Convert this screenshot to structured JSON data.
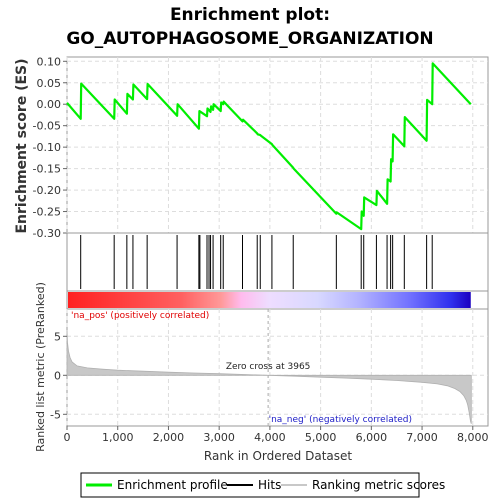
{
  "title_line1": "Enrichment plot:",
  "title_line2": "GO_AUTOPHAGOSOME_ORGANIZATION",
  "chart_data": {
    "type": "line",
    "es_panel": {
      "ylabel": "Enrichment score (ES)",
      "ylim": [
        -0.3,
        0.11
      ],
      "yticks": [
        "0.10",
        "0.05",
        "0.00",
        "-0.05",
        "-0.10",
        "-0.15",
        "-0.20",
        "-0.25",
        "-0.30"
      ],
      "ytick_values": [
        0.1,
        0.05,
        0.0,
        -0.05,
        -0.1,
        -0.15,
        -0.2,
        -0.25,
        -0.3
      ],
      "grid": true,
      "series": [
        {
          "name": "Enrichment profile",
          "color": "#00ee00",
          "x": [
            0,
            270,
            280,
            930,
            940,
            1180,
            1190,
            1300,
            1310,
            1580,
            1590,
            2170,
            2180,
            2600,
            2610,
            2760,
            2770,
            2830,
            2840,
            2880,
            2890,
            3030,
            3040,
            3080,
            3090,
            3460,
            3470,
            3750,
            3760,
            3810,
            3820,
            4040,
            4050,
            4460,
            4470,
            5310,
            5320,
            5800,
            5810,
            5850,
            5860,
            6100,
            6110,
            6310,
            6320,
            6380,
            6390,
            6420,
            6430,
            6650,
            6660,
            7090,
            7100,
            7200,
            7210,
            7960
          ],
          "y": [
            0.003,
            -0.034,
            0.048,
            -0.034,
            0.011,
            -0.022,
            0.024,
            0.011,
            0.046,
            0.012,
            0.047,
            -0.027,
            0.0,
            -0.057,
            -0.016,
            -0.028,
            -0.01,
            -0.018,
            -0.005,
            -0.013,
            0.0,
            -0.016,
            0.004,
            0.0,
            0.006,
            -0.04,
            -0.036,
            -0.068,
            -0.07,
            -0.072,
            -0.073,
            -0.093,
            -0.095,
            -0.148,
            -0.15,
            -0.255,
            -0.252,
            -0.291,
            -0.25,
            -0.26,
            -0.217,
            -0.235,
            -0.202,
            -0.232,
            -0.175,
            -0.18,
            -0.128,
            -0.133,
            -0.07,
            -0.098,
            -0.03,
            -0.085,
            0.01,
            0.0,
            0.095,
            0.0
          ]
        }
      ]
    },
    "hits": {
      "name": "Hits",
      "x": [
        270,
        930,
        1180,
        1300,
        1580,
        2170,
        2600,
        2620,
        2760,
        2800,
        2830,
        2880,
        3030,
        3080,
        3460,
        3750,
        3810,
        4040,
        4460,
        5310,
        5800,
        5850,
        6100,
        6310,
        6380,
        6420,
        6650,
        7090,
        7200
      ]
    },
    "rank_metric": {
      "name": "Ranking metric scores",
      "ylabel": "Ranked list metric (PreRanked)",
      "ylim": [
        -6.5,
        8.5
      ],
      "yticks": [
        "5",
        "0",
        "-5"
      ],
      "ytick_values": [
        5,
        0,
        -5
      ],
      "x": [
        0,
        10,
        30,
        60,
        100,
        200,
        400,
        700,
        1000,
        1500,
        2000,
        2500,
        3000,
        3500,
        3965,
        4500,
        5000,
        5500,
        6000,
        6500,
        7000,
        7300,
        7500,
        7650,
        7750,
        7820,
        7870,
        7900,
        7930,
        7955,
        7970
      ],
      "y": [
        5.8,
        4.2,
        3.1,
        2.3,
        1.7,
        1.2,
        0.95,
        0.78,
        0.66,
        0.52,
        0.4,
        0.3,
        0.2,
        0.1,
        0.0,
        -0.12,
        -0.24,
        -0.36,
        -0.5,
        -0.67,
        -0.9,
        -1.1,
        -1.35,
        -1.7,
        -2.1,
        -2.6,
        -3.2,
        -3.8,
        -4.8,
        -5.9,
        -6.2
      ],
      "zero_cross_label": "Zero cross at 3965",
      "zero_cross_x": 3965,
      "pos_label": "'na_pos' (positively correlated)",
      "neg_label": "'na_neg' (negatively correlated)"
    },
    "xaxis": {
      "xlabel": "Rank in Ordered Dataset",
      "xlim": [
        0,
        8300
      ],
      "xticks": [
        "0",
        "1,000",
        "2,000",
        "3,000",
        "4,000",
        "5,000",
        "6,000",
        "7,000",
        "8,000"
      ],
      "xtick_values": [
        0,
        1000,
        2000,
        3000,
        4000,
        5000,
        6000,
        7000,
        8000
      ],
      "dataset_end": 7960
    },
    "legend": {
      "placement": "bottom",
      "items": [
        {
          "label": "Enrichment profile",
          "color": "#00ee00"
        },
        {
          "label": "Hits",
          "color": "#000000"
        },
        {
          "label": "Ranking metric scores",
          "color": "#c8c8c8"
        }
      ]
    }
  }
}
